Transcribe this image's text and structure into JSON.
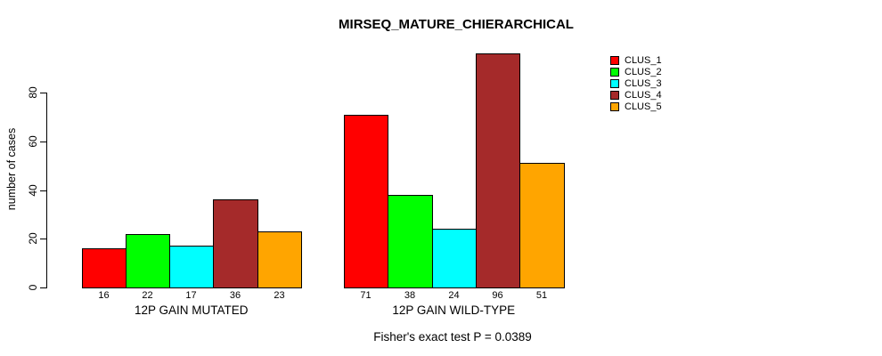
{
  "chart_data": {
    "type": "bar",
    "grouped": true,
    "title": "MIRSEQ_MATURE_CHIERARCHICAL",
    "xlabel": "",
    "ylabel": "number of cases",
    "caption": "Fisher's exact test P = 0.0389",
    "categories": [
      "12P GAIN MUTATED",
      "12P GAIN WILD-TYPE"
    ],
    "series": [
      {
        "name": "CLUS_1",
        "color": "#FF0000",
        "values": [
          16,
          71
        ]
      },
      {
        "name": "CLUS_2",
        "color": "#00FF00",
        "values": [
          22,
          38
        ]
      },
      {
        "name": "CLUS_3",
        "color": "#00FFFF",
        "values": [
          17,
          24
        ]
      },
      {
        "name": "CLUS_4",
        "color": "#A52A2A",
        "values": [
          36,
          96
        ]
      },
      {
        "name": "CLUS_5",
        "color": "#FFA500",
        "values": [
          23,
          51
        ]
      }
    ],
    "bar_value_labels": [
      [
        "16",
        "22",
        "17",
        "36",
        "23"
      ],
      [
        "71",
        "38",
        "24",
        "96",
        "51"
      ]
    ],
    "yticks": [
      0,
      20,
      40,
      60,
      80
    ],
    "ylim": [
      0,
      97
    ],
    "grid": false,
    "legend_position": "top-right",
    "background_color": "#FFFFFF",
    "axis_color": "#000000"
  }
}
